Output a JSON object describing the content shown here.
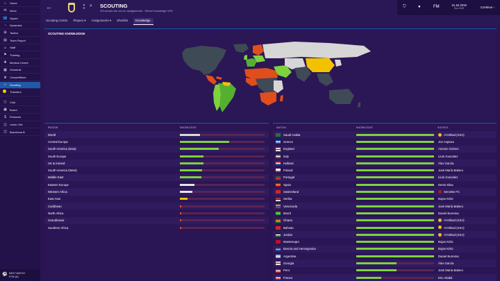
{
  "sidebar": {
    "items": [
      {
        "icon": "home-icon",
        "glyph": "⌂",
        "label": "Home"
      },
      {
        "icon": "inbox-icon",
        "glyph": "✉",
        "label": "Inbox"
      },
      {
        "icon": "squad-icon",
        "glyph": "👥",
        "label": "Squad"
      },
      {
        "icon": "dynamics-icon",
        "glyph": "◔",
        "label": "Dynamics"
      },
      {
        "icon": "tactics-icon",
        "glyph": "⊞",
        "label": "Tactics"
      },
      {
        "icon": "team-report-icon",
        "glyph": "▤",
        "label": "Team Report"
      },
      {
        "icon": "staff-icon",
        "glyph": "☺",
        "label": "Staff"
      },
      {
        "icon": "training-icon",
        "glyph": "⚑",
        "label": "Training"
      },
      {
        "icon": "medical-centre-icon",
        "glyph": "✚",
        "label": "Medical Centre"
      },
      {
        "icon": "schedule-icon",
        "glyph": "▦",
        "label": "Schedule"
      },
      {
        "icon": "competitions-icon",
        "glyph": "♛",
        "label": "Competitions"
      },
      {
        "icon": "scouting-icon",
        "glyph": "⌕",
        "label": "Scouting"
      },
      {
        "icon": "transfers-icon",
        "glyph": "⇄",
        "label": "Transfers"
      },
      {
        "icon": "club-icon",
        "glyph": "⛉",
        "label": "Club"
      },
      {
        "icon": "board-icon",
        "glyph": "▣",
        "label": "Board"
      },
      {
        "icon": "finances-icon",
        "glyph": "$",
        "label": "Finances"
      },
      {
        "icon": "under-19s-icon",
        "glyph": "◫",
        "label": "Under 19s"
      },
      {
        "icon": "club-b-icon",
        "glyph": "◫",
        "label": "Barcelona B"
      }
    ],
    "next_match": {
      "line1": "NEXT MATCH",
      "line2": "FCM (A)"
    }
  },
  "header": {
    "title": "SCOUTING",
    "subtitle": "3/3 scouts are out on assignments - Worst Knowledge 13%",
    "tabs": [
      "Scouting Centre",
      "Players ▾",
      "Assignments ▾",
      "Shortlist",
      "Knowledge"
    ],
    "date": "15 Jul 2018",
    "day": "Sun 8:00",
    "continue_label": "Continue"
  },
  "map": {
    "title": "SCOUTING KNOWLEDGE"
  },
  "region_table": {
    "headers": {
      "region": "REGION",
      "knowledge": "KNOWLEDGE"
    },
    "rows": [
      {
        "name": "World",
        "value": 0.24,
        "color": "#d9d9d9"
      },
      {
        "name": "Central Europe",
        "value": 0.58,
        "color": "#7ed23d"
      },
      {
        "name": "South America (East)",
        "value": 0.46,
        "color": "#7ed23d"
      },
      {
        "name": "South Europe",
        "value": 0.28,
        "color": "#7ed23d"
      },
      {
        "name": "UK & Ireland",
        "value": 0.28,
        "color": "#7ed23d"
      },
      {
        "name": "South America (West)",
        "value": 0.26,
        "color": "#7ed23d"
      },
      {
        "name": "Middle East",
        "value": 0.25,
        "color": "#7ed23d"
      },
      {
        "name": "Eastern Europe",
        "value": 0.17,
        "color": "#e5e5e5"
      },
      {
        "name": "Western Africa",
        "value": 0.15,
        "color": "#e5e5e5"
      },
      {
        "name": "East Asia",
        "value": 0.09,
        "color": "#f2c200"
      },
      {
        "name": "Caribbean",
        "value": 0.01,
        "color": "#e04e1c"
      },
      {
        "name": "North Africa",
        "value": 0.01,
        "color": "#e04e1c"
      },
      {
        "name": "Scandinavia",
        "value": 0.01,
        "color": "#e04e1c"
      },
      {
        "name": "Southern Africa",
        "value": 0.01,
        "color": "#e04e1c"
      }
    ]
  },
  "nation_table": {
    "headers": {
      "nation": "NATION",
      "knowledge": "KNOWLEDGE",
      "source": "SOURCE"
    },
    "rows": [
      {
        "flag": [
          "#1f7a3a",
          "#1f7a3a",
          "#1f7a3a"
        ],
        "name": "Saudi Arabia",
        "value": 1.0,
        "source": "Al-Ittihad (KSA)",
        "badge": "#e6c21a"
      },
      {
        "flag": [
          "#1f5bbf",
          "#ffffff",
          "#1f5bbf"
        ],
        "name": "Greece",
        "value": 1.0,
        "source": "Jon Aspiazu",
        "badge": ""
      },
      {
        "flag": [
          "#ffffff",
          "#d62828",
          "#ffffff"
        ],
        "name": "England",
        "value": 1.0,
        "source": "Antonio Gómez",
        "badge": ""
      },
      {
        "flag": [
          "#1b8f3a",
          "#ffffff",
          "#d62828"
        ],
        "name": "Italy",
        "value": 1.0,
        "source": "Lluís Gonzalez",
        "badge": ""
      },
      {
        "flag": [
          "#d62828",
          "#ffffff",
          "#1f4aa0"
        ],
        "name": "Holland",
        "value": 1.0,
        "source": "Álex García",
        "badge": ""
      },
      {
        "flag": [
          "#ffffff",
          "#ffffff",
          "#d62828"
        ],
        "name": "Poland",
        "value": 1.0,
        "source": "José María Bakero",
        "badge": ""
      },
      {
        "flag": [
          "#0a6b3a",
          "#d62828",
          "#d62828"
        ],
        "name": "Portugal",
        "value": 1.0,
        "source": "Lluís Gonzalez",
        "badge": ""
      },
      {
        "flag": [
          "#c8102e",
          "#f2c200",
          "#c8102e"
        ],
        "name": "Spain",
        "value": 1.0,
        "source": "Denis Silva",
        "badge": ""
      },
      {
        "flag": [
          "#d62828",
          "#d62828",
          "#d62828"
        ],
        "name": "Switzerland",
        "value": 1.0,
        "source": "Servette FC",
        "badge": "#b5142b"
      },
      {
        "flag": [
          "#c6363c",
          "#0c4076",
          "#ffffff"
        ],
        "name": "Serbia",
        "value": 1.0,
        "source": "Bojan Krkic",
        "badge": ""
      },
      {
        "flag": [
          "#f2c200",
          "#1f4aa0",
          "#d62828"
        ],
        "name": "Venezuela",
        "value": 1.0,
        "source": "José María Bakero",
        "badge": ""
      },
      {
        "flag": [
          "#1b9c3a",
          "#f2c200",
          "#1b9c3a"
        ],
        "name": "Brazil",
        "value": 1.0,
        "source": "Daniel Burreina",
        "badge": ""
      },
      {
        "flag": [
          "#d62828",
          "#f2c200",
          "#1b8f3a"
        ],
        "name": "Ghana",
        "value": 1.0,
        "source": "Al-Ittihad (KSA)",
        "badge": "#e6c21a"
      },
      {
        "flag": [
          "#d62828",
          "#d62828",
          "#d62828"
        ],
        "name": "Bahrain",
        "value": 1.0,
        "source": "Al-Ittihad (KSA)",
        "badge": "#e6c21a"
      },
      {
        "flag": [
          "#111111",
          "#ffffff",
          "#1b8f3a"
        ],
        "name": "Jordan",
        "value": 1.0,
        "source": "Al-Ittihad (KSA)",
        "badge": "#e6c21a"
      },
      {
        "flag": [
          "#c8102e",
          "#c8102e",
          "#c8102e"
        ],
        "name": "Montenegro",
        "value": 1.0,
        "source": "Bojan Krkic",
        "badge": ""
      },
      {
        "flag": [
          "#1f3fa0",
          "#f2c200",
          "#1f3fa0"
        ],
        "name": "Bosnia and Herzegovina",
        "value": 1.0,
        "source": "Bojan Krkic",
        "badge": ""
      },
      {
        "flag": [
          "#74acdf",
          "#ffffff",
          "#74acdf"
        ],
        "name": "Argentina",
        "value": 1.0,
        "source": "Daniel Burreina",
        "badge": ""
      },
      {
        "flag": [
          "#ffffff",
          "#d62828",
          "#ffffff"
        ],
        "name": "Georgia",
        "value": 0.52,
        "source": "Álex García",
        "badge": ""
      },
      {
        "flag": [
          "#d62828",
          "#ffffff",
          "#d62828"
        ],
        "name": "Peru",
        "value": 0.52,
        "source": "José María Bakero",
        "badge": ""
      },
      {
        "flag": [
          "#1f3fa0",
          "#ffffff",
          "#d62828"
        ],
        "name": "France",
        "value": 0.32,
        "source": "Eric Abidal",
        "badge": ""
      },
      {
        "flag": [
          "#ffffff",
          "#d62828",
          "#ffffff"
        ],
        "name": "Japan",
        "value": 0.32,
        "source": "Jordi Roura",
        "badge": ""
      }
    ]
  },
  "colors": {
    "accent": "#1f5aa8",
    "good": "#7ed23d",
    "mid": "#f2c200",
    "low": "#e04e1c",
    "track": "#5a2452"
  }
}
